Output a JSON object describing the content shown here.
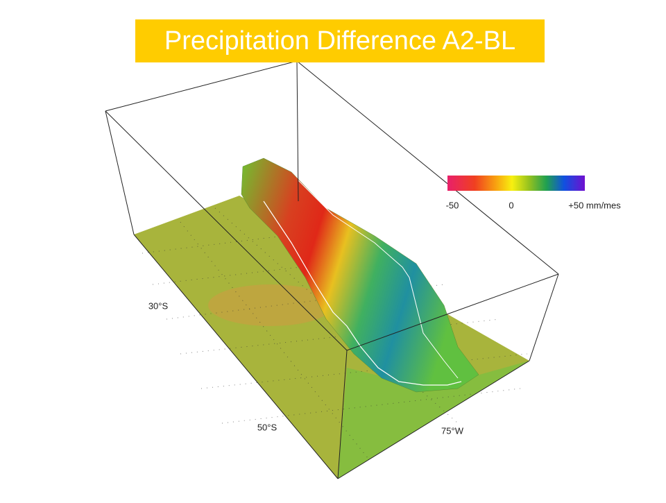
{
  "header": {
    "title": "Precipitation Difference A2-BL"
  },
  "colorbar": {
    "labels": [
      "-50",
      "0",
      "+50 mm/mes"
    ]
  },
  "axes": {
    "latitude_labels": [
      "30°S",
      "50°S"
    ],
    "longitude_labels": [
      "75°W"
    ]
  }
}
